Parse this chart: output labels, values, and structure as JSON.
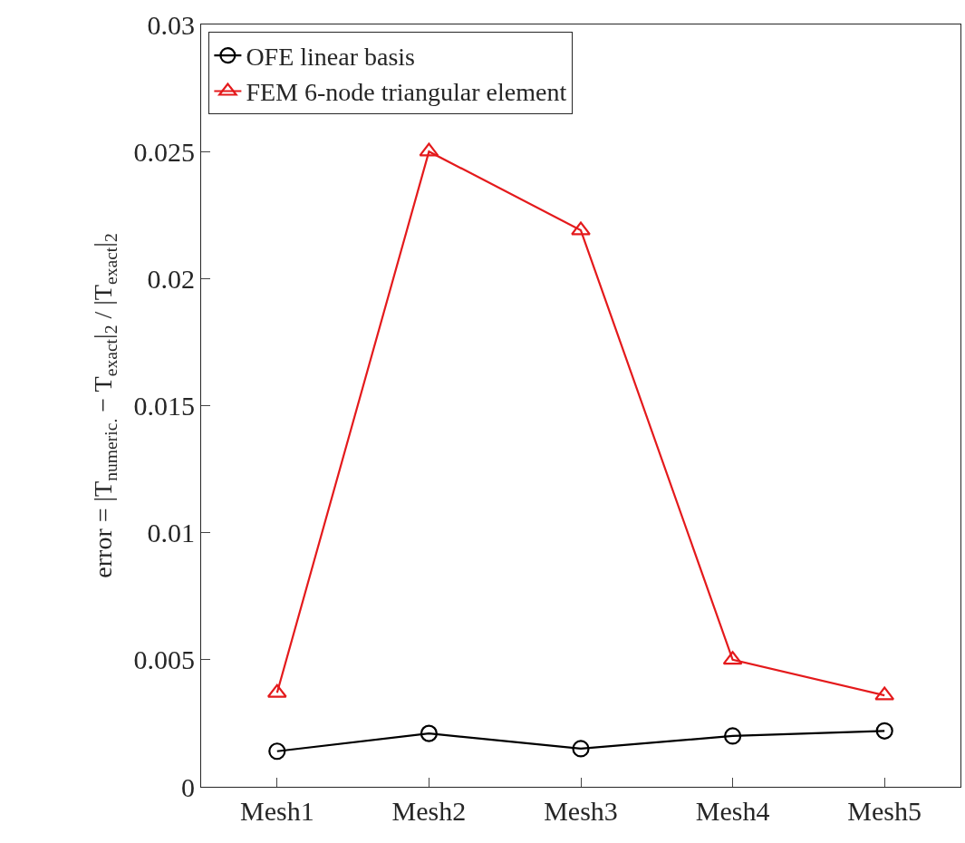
{
  "chart_data": {
    "type": "line",
    "ylabel": "error = |T$_{numeric.}$ − T$_{exact}$|$_{2}$ / |T$_{exact}$|$_{2}$",
    "categories": [
      "Mesh1",
      "Mesh2",
      "Mesh3",
      "Mesh4",
      "Mesh5"
    ],
    "series": [
      {
        "name": "OFE linear basis",
        "color": "#000000",
        "marker": "circle",
        "values": [
          0.0014,
          0.0021,
          0.0015,
          0.002,
          0.0022
        ]
      },
      {
        "name": "FEM 6-node triangular element",
        "color": "#e41a1c",
        "marker": "triangle",
        "values": [
          0.0037,
          0.025,
          0.0219,
          0.005,
          0.0036
        ]
      }
    ],
    "ylim": [
      0,
      0.03
    ],
    "yticks": [
      0,
      0.005,
      0.01,
      0.015,
      0.02,
      0.025,
      0.03
    ],
    "legend": "top left",
    "line_style": "solid"
  }
}
